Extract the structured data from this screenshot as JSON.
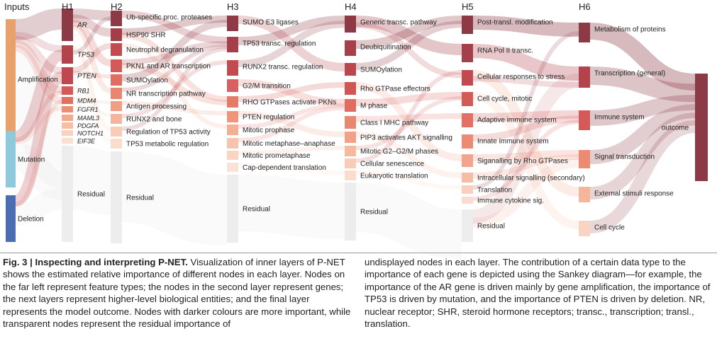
{
  "layers": [
    {
      "id": "inputs",
      "header": "Inputs",
      "nodes": [
        {
          "label": "Amplification",
          "color": "#E8A06C"
        },
        {
          "label": "Mutation",
          "color": "#8EC9DC"
        },
        {
          "label": "Deletion",
          "color": "#4D6DB3"
        }
      ]
    },
    {
      "id": "h1",
      "header": "H1",
      "italic": true,
      "nodes": [
        {
          "label": "AR",
          "color": "#8C3A45"
        },
        {
          "label": "TP53",
          "color": "#B2434C"
        },
        {
          "label": "PTEN",
          "color": "#C04750"
        },
        {
          "label": "RB1",
          "color": "#D45A5A"
        },
        {
          "label": "MDM4",
          "color": "#E07060"
        },
        {
          "label": "FGFR1",
          "color": "#EB8E74"
        },
        {
          "label": "MAML3",
          "color": "#F2A98C"
        },
        {
          "label": "PDGFA",
          "color": "#F6C0A6"
        },
        {
          "label": "NOTCH1",
          "color": "#F8D2BC"
        },
        {
          "label": "EIF3E",
          "color": "#FAE0D0"
        },
        {
          "label": "Residual",
          "color": "#EDEDED"
        }
      ]
    },
    {
      "id": "h2",
      "header": "H2",
      "nodes": [
        {
          "label": "Ub-specific proc. proteases",
          "color": "#8E3A46"
        },
        {
          "label": "HSP90 SHR",
          "color": "#A23E48"
        },
        {
          "label": "Neutrophil degranulation",
          "color": "#C24B50"
        },
        {
          "label": "PKN1 and AR transcription",
          "color": "#D35A58"
        },
        {
          "label": "SUMOylation",
          "color": "#DE6E62"
        },
        {
          "label": "NR transcription pathway",
          "color": "#E8876F"
        },
        {
          "label": "Antigen processing",
          "color": "#F09E84"
        },
        {
          "label": "RUNX2 and bone",
          "color": "#F4B59C"
        },
        {
          "label": "Regulation of TP53 activity",
          "color": "#F8CCB6"
        },
        {
          "label": "TP53 metabolic regulation",
          "color": "#FADDCC"
        },
        {
          "label": "Residual",
          "color": "#EDEDED"
        }
      ]
    },
    {
      "id": "h3",
      "header": "H3",
      "nodes": [
        {
          "label": "SUMO E3 ligases",
          "color": "#8E3A46"
        },
        {
          "label": "TP53 transc. regulation",
          "color": "#A73F4A"
        },
        {
          "label": "RUNX2 transc. regulation",
          "color": "#C24B50"
        },
        {
          "label": "G2/M transition",
          "color": "#D86060"
        },
        {
          "label": "RHO GTPases activate PKNs",
          "color": "#E47A68"
        },
        {
          "label": "PTEN regulation",
          "color": "#EE957C"
        },
        {
          "label": "Mitotic prophase",
          "color": "#F3AE94"
        },
        {
          "label": "Mitotic metaphase–anaphase",
          "color": "#F6C3AD"
        },
        {
          "label": "Mitotic prometaphase",
          "color": "#F9D4C2"
        },
        {
          "label": "Cap-dependent translation",
          "color": "#FBE2D6"
        },
        {
          "label": "Residual",
          "color": "#EDEDED"
        }
      ]
    },
    {
      "id": "h4",
      "header": "H4",
      "nodes": [
        {
          "label": "Generic transc. pathway",
          "color": "#8E3A46"
        },
        {
          "label": "Deubiquitination",
          "color": "#A53F49"
        },
        {
          "label": "SUMOylation",
          "color": "#BB474E"
        },
        {
          "label": "Rho GTPase effectors",
          "color": "#D05656"
        },
        {
          "label": "M phase",
          "color": "#E06C62"
        },
        {
          "label": "Class I MHC pathway",
          "color": "#EA8772"
        },
        {
          "label": "PIP3 activates AKT signalling",
          "color": "#F1A188"
        },
        {
          "label": "Mitotic G2–G2/M phases",
          "color": "#F5B9A0"
        },
        {
          "label": "Cellular senescence",
          "color": "#F8CCB8"
        },
        {
          "label": "Eukaryotic translation",
          "color": "#FADDCE"
        },
        {
          "label": "Residual",
          "color": "#EDEDED"
        }
      ]
    },
    {
      "id": "h5",
      "header": "H5",
      "nodes": [
        {
          "label": "Post-transl. modification",
          "color": "#8E3A46"
        },
        {
          "label": "RNA Pol II transc.",
          "color": "#A53F49"
        },
        {
          "label": "Cellular responses to stress",
          "color": "#C04A4F"
        },
        {
          "label": "Cell cycle, mitotic",
          "color": "#D45A58"
        },
        {
          "label": "Adaptive immune system",
          "color": "#E27064"
        },
        {
          "label": "Innate immune system",
          "color": "#EC8A74"
        },
        {
          "label": "Siganalling by Rho GTPases",
          "color": "#F2A48C"
        },
        {
          "label": "Intracellular signalling (secondary)",
          "color": "#F6BCA6"
        },
        {
          "label": "Translation",
          "color": "#F9D0BE"
        },
        {
          "label": "Immune cytokine sig.",
          "color": "#FADDD0"
        },
        {
          "label": "Residual",
          "color": "#EDEDED"
        }
      ]
    },
    {
      "id": "h6",
      "header": "H6",
      "nodes": [
        {
          "label": "Metabolism of proteins",
          "color": "#8E3A46"
        },
        {
          "label": "Transcription (general)",
          "color": "#B2434C"
        },
        {
          "label": "Immune system",
          "color": "#D45A5A"
        },
        {
          "label": "Signal transduction",
          "color": "#EC8A72"
        },
        {
          "label": "External stimuli response",
          "color": "#F5B59A"
        },
        {
          "label": "Cell cycle",
          "color": "#F9D4C2"
        }
      ]
    },
    {
      "id": "out",
      "header": "",
      "nodes": [
        {
          "label": "outcome",
          "color": "#8C3A45"
        }
      ]
    }
  ],
  "caption": {
    "lead": "Fig. 3 | Inspecting and interpreting P-NET.",
    "col1_rest": " Visualization of inner layers of P-NET shows the estimated relative importance of different nodes in each layer. Nodes on the far left represent feature types; the nodes in the second layer represent genes; the next layers represent higher-level biological entities; and the final layer represents the model outcome. Nodes with darker colours are more important, while transparent nodes represent the residual importance of",
    "col2": "undisplayed nodes in each layer. The contribution of a certain data type to the importance of each gene is depicted using the Sankey diagram—for example, the importance of the AR gene is driven mainly by gene amplification, the importance of TP53 is driven by mutation, and the importance of PTEN is driven by deletion. NR, nuclear receptor; SHR, steroid hormone receptors; transc., transcription; transl., translation."
  }
}
